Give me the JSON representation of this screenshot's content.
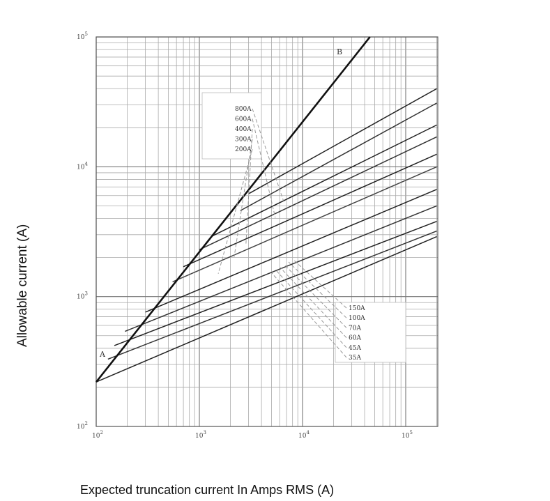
{
  "chart_data": {
    "type": "line",
    "title": "",
    "xlabel": "Expected truncation current In Amps RMS (A)",
    "ylabel": "Allowable current (A)",
    "xscale": "log",
    "yscale": "log",
    "xlim": [
      100,
      200000
    ],
    "ylim": [
      100,
      100000
    ],
    "x_ticks": [
      {
        "base": "10",
        "exp": "2"
      },
      {
        "base": "10",
        "exp": "3"
      },
      {
        "base": "10",
        "exp": "4"
      },
      {
        "base": "10",
        "exp": "5"
      }
    ],
    "y_ticks": [
      {
        "base": "10",
        "exp": "2"
      },
      {
        "base": "10",
        "exp": "3"
      },
      {
        "base": "10",
        "exp": "4"
      },
      {
        "base": "10",
        "exp": "5"
      }
    ],
    "grid": true,
    "ab_line": {
      "label_a": "A",
      "label_b": "B",
      "points": [
        [
          100,
          220
        ],
        [
          45000,
          100000
        ]
      ]
    },
    "legend_upper": [
      "800A",
      "600A",
      "400A",
      "300A",
      "200A"
    ],
    "legend_lower": [
      "150A",
      "100A",
      "70A",
      "60A",
      "45A",
      "35A"
    ],
    "series": [
      {
        "name": "800A",
        "x": [
          3000,
          200000
        ],
        "y": [
          6200,
          40000
        ]
      },
      {
        "name": "600A",
        "x": [
          2500,
          200000
        ],
        "y": [
          4600,
          31000
        ]
      },
      {
        "name": "400A",
        "x": [
          1300,
          200000
        ],
        "y": [
          2900,
          21000
        ]
      },
      {
        "name": "300A",
        "x": [
          1000,
          200000
        ],
        "y": [
          2300,
          17000
        ]
      },
      {
        "name": "200A",
        "x": [
          700,
          200000
        ],
        "y": [
          1700,
          12500
        ]
      },
      {
        "name": "150A",
        "x": [
          550,
          200000
        ],
        "y": [
          1300,
          10000
        ]
      },
      {
        "name": "100A",
        "x": [
          300,
          200000
        ],
        "y": [
          760,
          6700
        ]
      },
      {
        "name": "70A",
        "x": [
          190,
          200000
        ],
        "y": [
          540,
          5000
        ]
      },
      {
        "name": "60A",
        "x": [
          150,
          200000
        ],
        "y": [
          420,
          3800
        ]
      },
      {
        "name": "45A",
        "x": [
          130,
          200000
        ],
        "y": [
          330,
          3200
        ]
      },
      {
        "name": "35A",
        "x": [
          100,
          200000
        ],
        "y": [
          220,
          2900
        ]
      }
    ]
  }
}
